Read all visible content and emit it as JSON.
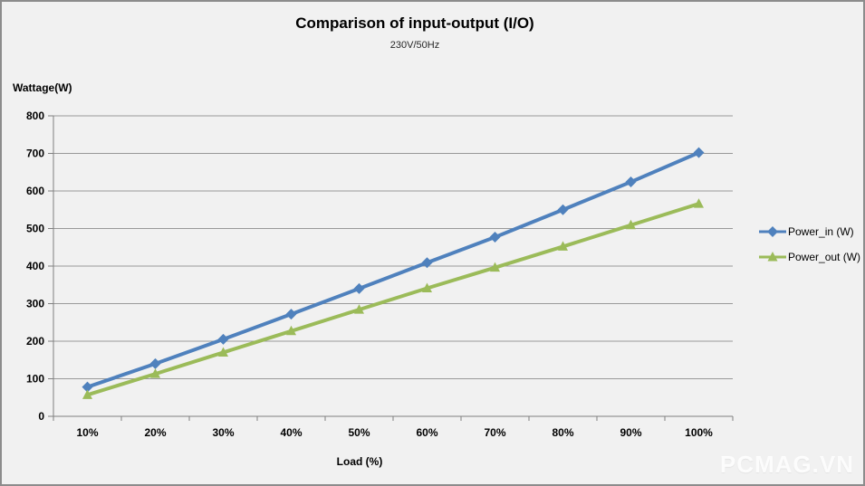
{
  "chart": {
    "title": "Comparison of input-output (I/O)",
    "subtitle": "230V/50Hz",
    "y_axis_title": "Wattage(W)",
    "x_axis_title": "Load (%)"
  },
  "watermark": {
    "text": "PCMAG.VN"
  },
  "colors": {
    "background": "#F1F1F1",
    "gridline": "#999999",
    "axis": "#808080",
    "power_in": "#4F81BD",
    "power_out": "#9BBB59"
  },
  "chart_data": {
    "type": "line",
    "title": "Comparison of input-output (I/O)",
    "subtitle": "230V/50Hz",
    "xlabel": "Load (%)",
    "ylabel": "Wattage(W)",
    "categories": [
      "10%",
      "20%",
      "30%",
      "40%",
      "50%",
      "60%",
      "70%",
      "80%",
      "90%",
      "100%"
    ],
    "series": [
      {
        "name": "Power_in (W)",
        "color": "#4F81BD",
        "marker": "diamond",
        "values": [
          78,
          140,
          205,
          272,
          340,
          409,
          477,
          550,
          624,
          702
        ]
      },
      {
        "name": "Power_out (W)",
        "color": "#9BBB59",
        "marker": "triangle",
        "values": [
          57,
          113,
          170,
          227,
          284,
          341,
          396,
          452,
          509,
          566
        ]
      }
    ],
    "ylim": [
      0,
      800
    ],
    "ytick_step": 100,
    "grid": true,
    "legend_position": "right"
  }
}
